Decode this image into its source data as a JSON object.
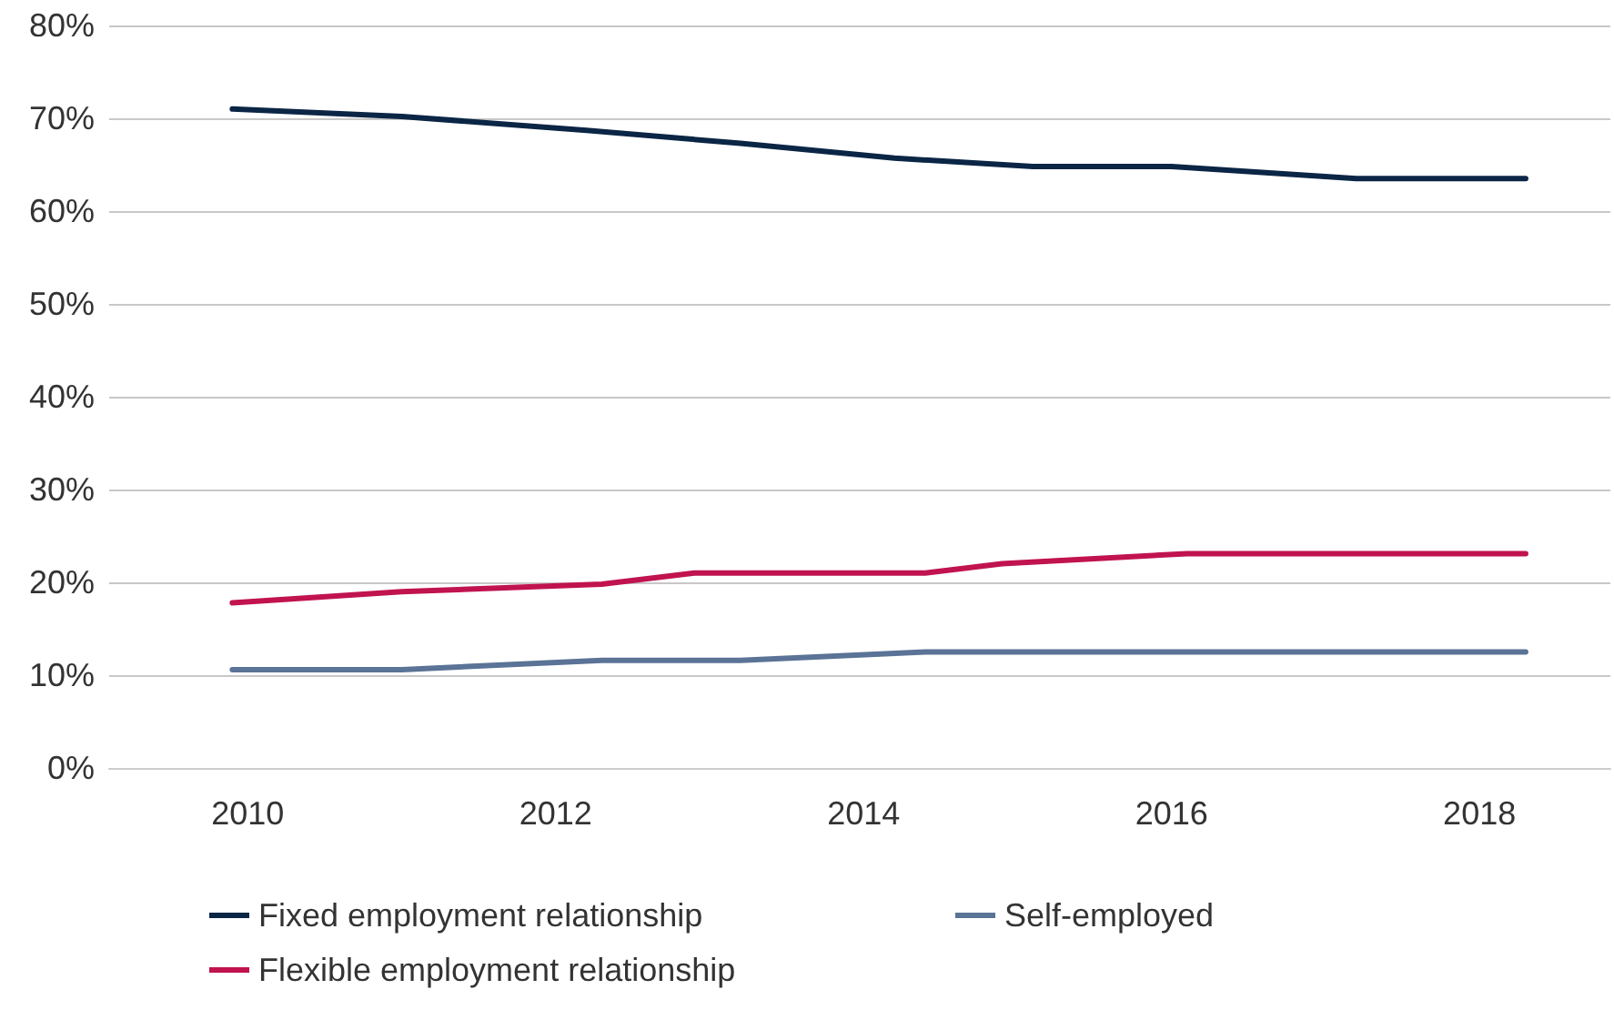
{
  "chart_data": {
    "type": "line",
    "series": [
      {
        "name": "Fixed employment relationship",
        "color": "#0b2545",
        "x": [
          2009.9,
          2011.0,
          2012.2,
          2013.2,
          2014.2,
          2015.1,
          2016.0,
          2017.2,
          2018.3
        ],
        "values": [
          71,
          70.2,
          68.7,
          67.3,
          65.7,
          64.8,
          64.8,
          63.5,
          63.5
        ]
      },
      {
        "name": "Flexible employment relationship",
        "color": "#c0134f",
        "x": [
          2009.9,
          2011.0,
          2012.3,
          2012.9,
          2014.4,
          2014.9,
          2016.1,
          2018.3
        ],
        "values": [
          17.8,
          19,
          19.8,
          21,
          21,
          22,
          23.1,
          23.1
        ]
      },
      {
        "name": "Self-employed",
        "color": "#5a7396",
        "x": [
          2009.9,
          2011.0,
          2012.3,
          2013.2,
          2014.4,
          2018.3
        ],
        "values": [
          10.6,
          10.6,
          11.6,
          11.6,
          12.5,
          12.5
        ]
      }
    ],
    "xlim": [
      2009.1,
      2018.85
    ],
    "xticks": [
      2010,
      2012,
      2014,
      2016,
      2018
    ],
    "ylim": [
      0,
      80
    ],
    "yticks": [
      {
        "value": 0,
        "label": "0%"
      },
      {
        "value": 10,
        "label": "10%"
      },
      {
        "value": 20,
        "label": "20%"
      },
      {
        "value": 30,
        "label": "30%"
      },
      {
        "value": 40,
        "label": "40%"
      },
      {
        "value": 50,
        "label": "50%"
      },
      {
        "value": 60,
        "label": "60%"
      },
      {
        "value": 70,
        "label": "70%"
      },
      {
        "value": 80,
        "label": "80%"
      }
    ],
    "grid": "y",
    "legend": "bottom",
    "marker": "none",
    "line_style": "solid"
  }
}
